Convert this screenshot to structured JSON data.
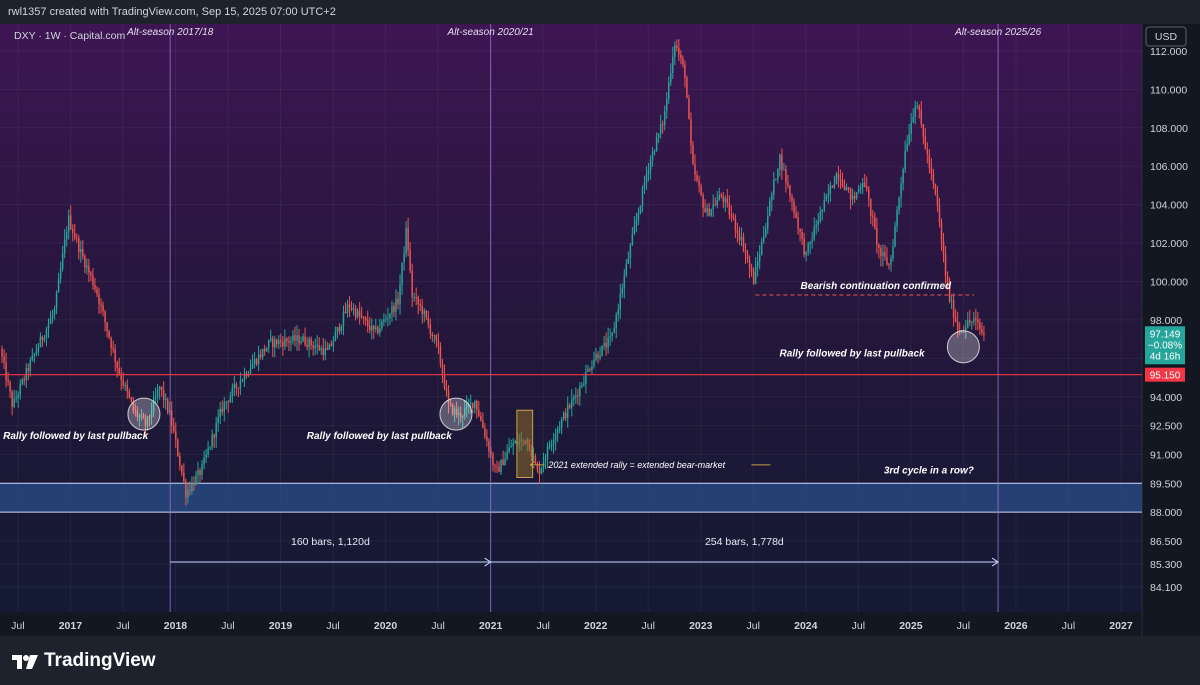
{
  "header": {
    "created_by": "rwl1357 created with TradingView.com, Sep 15, 2025 07:00 UTC+2"
  },
  "footer": {
    "brand": "TradingView"
  },
  "colors": {
    "up": "#26a69a",
    "down": "#ef5350",
    "support_line": "#f23645",
    "zone_fill": "#2a4f88",
    "season_line": "#9b6fd9",
    "price_badge": "#26a69a",
    "support_badge": "#f23645"
  },
  "chart_data": {
    "type": "candlestick",
    "symbol_label": "DXY · 1W · Capital.com",
    "currency": "USD",
    "ylim": [
      82.8,
      113.4
    ],
    "y_ticks": [
      84.1,
      85.3,
      86.5,
      88.0,
      89.5,
      91.0,
      92.5,
      94.0,
      96.0,
      98.0,
      100.0,
      102.0,
      104.0,
      106.0,
      108.0,
      110.0,
      112.0
    ],
    "y_tick_labels": [
      "84.100",
      "85.300",
      "86.500",
      "88.000",
      "89.500",
      "91.000",
      "92.500",
      "94.000",
      "96.000",
      "98.000",
      "100.000",
      "102.000",
      "104.000",
      "106.000",
      "108.000",
      "110.000",
      "112.000"
    ],
    "x_range": [
      2016.33,
      2027.2
    ],
    "x_ticks": [
      {
        "t": 2016.5,
        "label": "Jul"
      },
      {
        "t": 2017.0,
        "label": "2017"
      },
      {
        "t": 2017.5,
        "label": "Jul"
      },
      {
        "t": 2018.0,
        "label": "2018"
      },
      {
        "t": 2018.5,
        "label": "Jul"
      },
      {
        "t": 2019.0,
        "label": "2019"
      },
      {
        "t": 2019.5,
        "label": "Jul"
      },
      {
        "t": 2020.0,
        "label": "2020"
      },
      {
        "t": 2020.5,
        "label": "Jul"
      },
      {
        "t": 2021.0,
        "label": "2021"
      },
      {
        "t": 2021.5,
        "label": "Jul"
      },
      {
        "t": 2022.0,
        "label": "2022"
      },
      {
        "t": 2022.5,
        "label": "Jul"
      },
      {
        "t": 2023.0,
        "label": "2023"
      },
      {
        "t": 2023.5,
        "label": "Jul"
      },
      {
        "t": 2024.0,
        "label": "2024"
      },
      {
        "t": 2024.5,
        "label": "Jul"
      },
      {
        "t": 2025.0,
        "label": "2025"
      },
      {
        "t": 2025.5,
        "label": "Jul"
      },
      {
        "t": 2026.0,
        "label": "2026"
      },
      {
        "t": 2026.5,
        "label": "Jul"
      },
      {
        "t": 2027.0,
        "label": "2027"
      }
    ],
    "path_points": [
      [
        2016.33,
        96.5
      ],
      [
        2016.45,
        93.5
      ],
      [
        2016.6,
        95.5
      ],
      [
        2016.85,
        98.5
      ],
      [
        2016.98,
        103.3
      ],
      [
        2017.1,
        101.5
      ],
      [
        2017.25,
        99.5
      ],
      [
        2017.45,
        95.5
      ],
      [
        2017.6,
        93.3
      ],
      [
        2017.72,
        92.5
      ],
      [
        2017.85,
        94.5
      ],
      [
        2017.95,
        93.0
      ],
      [
        2018.1,
        89.0
      ],
      [
        2018.25,
        90.2
      ],
      [
        2018.45,
        93.5
      ],
      [
        2018.7,
        95.5
      ],
      [
        2018.9,
        96.8
      ],
      [
        2019.2,
        97.0
      ],
      [
        2019.45,
        96.3
      ],
      [
        2019.65,
        98.8
      ],
      [
        2019.9,
        97.3
      ],
      [
        2020.12,
        99.0
      ],
      [
        2020.2,
        102.8
      ],
      [
        2020.25,
        99.3
      ],
      [
        2020.35,
        98.5
      ],
      [
        2020.5,
        96.5
      ],
      [
        2020.6,
        93.5
      ],
      [
        2020.7,
        93.0
      ],
      [
        2020.85,
        93.8
      ],
      [
        2020.95,
        92.0
      ],
      [
        2021.05,
        90.0
      ],
      [
        2021.2,
        91.5
      ],
      [
        2021.35,
        91.8
      ],
      [
        2021.45,
        90.0
      ],
      [
        2021.6,
        92.0
      ],
      [
        2021.85,
        94.5
      ],
      [
        2021.98,
        96.0
      ],
      [
        2022.15,
        97.0
      ],
      [
        2022.3,
        101.0
      ],
      [
        2022.5,
        106.0
      ],
      [
        2022.65,
        108.5
      ],
      [
        2022.75,
        112.5
      ],
      [
        2022.85,
        110.8
      ],
      [
        2022.92,
        106.0
      ],
      [
        2023.05,
        103.5
      ],
      [
        2023.2,
        104.5
      ],
      [
        2023.4,
        102.0
      ],
      [
        2023.5,
        100.0
      ],
      [
        2023.6,
        102.5
      ],
      [
        2023.75,
        106.5
      ],
      [
        2023.9,
        103.5
      ],
      [
        2024.0,
        101.3
      ],
      [
        2024.1,
        103.0
      ],
      [
        2024.3,
        105.7
      ],
      [
        2024.45,
        104.2
      ],
      [
        2024.55,
        105.4
      ],
      [
        2024.7,
        101.5
      ],
      [
        2024.8,
        100.8
      ],
      [
        2024.95,
        107.0
      ],
      [
        2025.05,
        109.5
      ],
      [
        2025.12,
        107.5
      ],
      [
        2025.25,
        104.0
      ],
      [
        2025.35,
        99.5
      ],
      [
        2025.45,
        97.5
      ],
      [
        2025.6,
        98.0
      ],
      [
        2025.7,
        97.149
      ]
    ],
    "alt_season_lines": [
      {
        "t": 2017.95,
        "label": "Alt-season 2017/18"
      },
      {
        "t": 2021.0,
        "label": "Alt-season 2020/21"
      },
      {
        "t": 2025.83,
        "label": "Alt-season 2025/26"
      }
    ],
    "support_level": 95.15,
    "support_label": "95.150",
    "zone": {
      "low": 88.0,
      "high": 89.5
    },
    "highlight_box": {
      "t0": 2021.25,
      "t1": 2021.4,
      "low": 89.8,
      "high": 93.3
    },
    "bearish_line": {
      "t0": 2023.52,
      "t1": 2025.6,
      "y": 99.3
    },
    "circles": [
      {
        "t": 2017.7,
        "y": 93.1
      },
      {
        "t": 2020.67,
        "y": 93.1
      },
      {
        "t": 2025.5,
        "y": 96.6
      }
    ],
    "measures": [
      {
        "t0": 2017.95,
        "t1": 2021.0,
        "y": 85.4,
        "label": "160 bars, 1,120d"
      },
      {
        "t0": 2021.0,
        "t1": 2025.83,
        "y": 85.4,
        "label": "254 bars, 1,778d"
      }
    ],
    "annotations": [
      {
        "text": "Rally followed by last pullback",
        "t": 2016.36,
        "y": 91.8
      },
      {
        "text": "Rally followed by last pullback",
        "t": 2019.25,
        "y": 91.8
      },
      {
        "text": "Rally followed by last pullback",
        "t": 2023.75,
        "y": 96.1
      },
      {
        "text": "Bearish continuation confirmed",
        "t": 2023.95,
        "y": 99.6
      },
      {
        "text": "2021 extended rally = extended bear-market",
        "t": 2021.55,
        "y": 90.3
      },
      {
        "text": "3rd cycle in a row?",
        "t": 2025.6,
        "y": 90.0
      }
    ],
    "last_price": {
      "value": "97.149",
      "change": "−0.08%",
      "countdown": "4d 16h"
    }
  }
}
